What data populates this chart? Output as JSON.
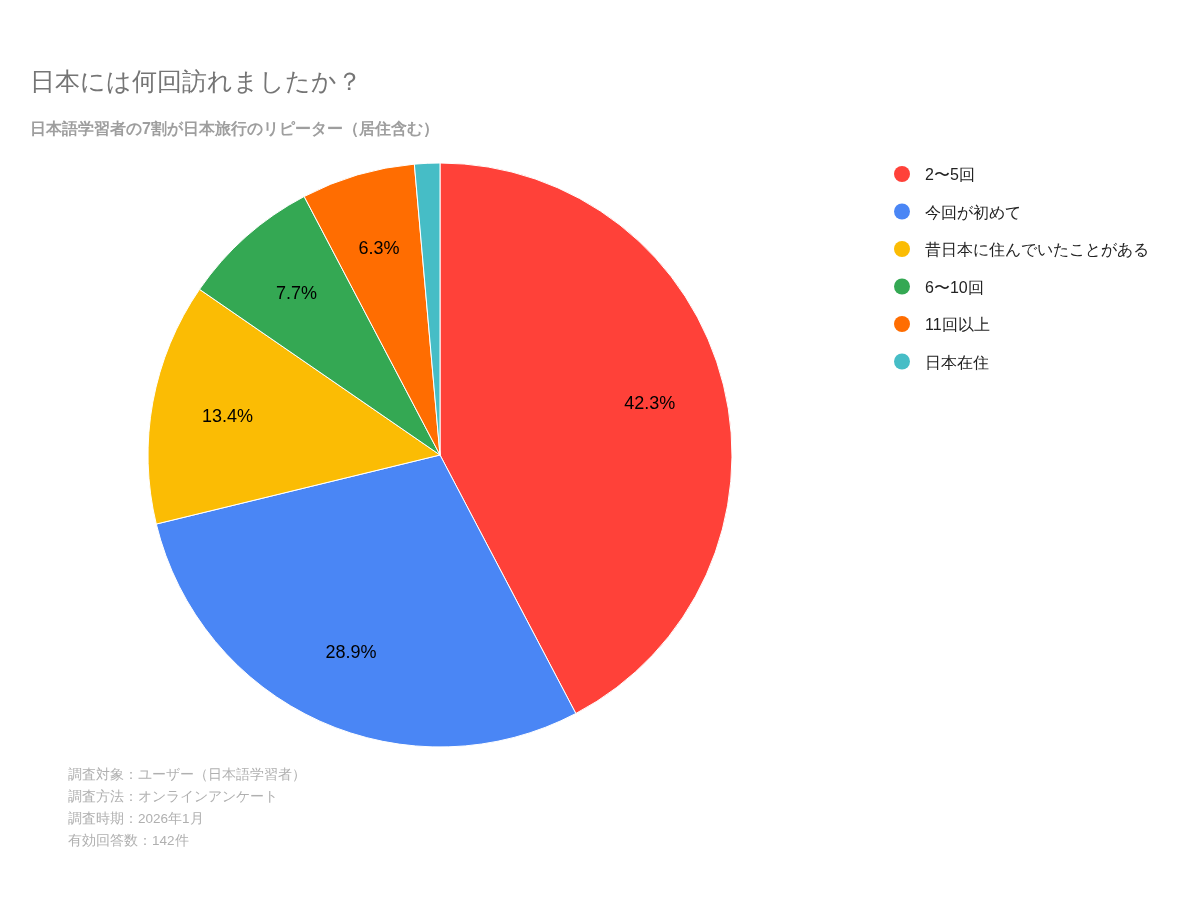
{
  "chart_data": {
    "type": "pie",
    "title": "日本には何回訪れましたか？",
    "subtitle": "日本語学習者の7割が日本旅行のリピーター（居住含む）",
    "categories": [
      "2〜5回",
      "今回が初めて",
      "昔日本に住んでいたことがある",
      "6〜10回",
      "11回以上",
      "日本在住"
    ],
    "values": [
      42.3,
      28.9,
      13.4,
      7.7,
      6.3,
      1.4
    ],
    "colors": [
      "#ff4139",
      "#4a86f5",
      "#fbbc04",
      "#34a853",
      "#ff6d01",
      "#46bdc6"
    ],
    "value_labels": [
      "42.3%",
      "28.9%",
      "13.4%",
      "7.7%",
      "6.3%",
      null
    ],
    "legend": "right",
    "annotations": [
      "調査対象：ユーザー（日本語学習者）",
      "調査方法：オンラインアンケート",
      "調査時期：2026年1月",
      "有効回答数：142件"
    ]
  }
}
